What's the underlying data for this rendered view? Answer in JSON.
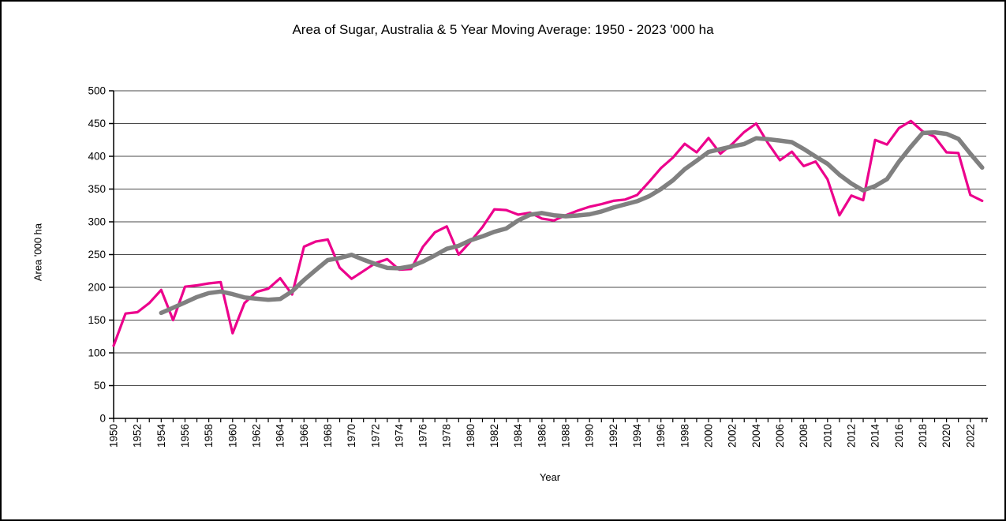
{
  "chart_data": {
    "type": "line",
    "title": "Area of Sugar, Australia & 5 Year Moving Average: 1950 - 2023 '000 ha",
    "xlabel": "Year",
    "ylabel": "Area '000 ha",
    "ylim": [
      0,
      500
    ],
    "ytick_step": 50,
    "xtick_label_every": 2,
    "grid": true,
    "legend": "none",
    "x": [
      1950,
      1951,
      1952,
      1953,
      1954,
      1955,
      1956,
      1957,
      1958,
      1959,
      1960,
      1961,
      1962,
      1963,
      1964,
      1965,
      1966,
      1967,
      1968,
      1969,
      1970,
      1971,
      1972,
      1973,
      1974,
      1975,
      1976,
      1977,
      1978,
      1979,
      1980,
      1981,
      1982,
      1983,
      1984,
      1985,
      1986,
      1987,
      1988,
      1989,
      1990,
      1991,
      1992,
      1993,
      1994,
      1995,
      1996,
      1997,
      1998,
      1999,
      2000,
      2001,
      2002,
      2003,
      2004,
      2005,
      2006,
      2007,
      2008,
      2009,
      2010,
      2011,
      2012,
      2013,
      2014,
      2015,
      2016,
      2017,
      2018,
      2019,
      2020,
      2021,
      2022,
      2023
    ],
    "series": [
      {
        "name": "Area",
        "color": "#EC008C",
        "stroke_width": 3.2,
        "values": [
          111,
          160,
          162,
          176,
          196,
          150,
          201,
          203,
          206,
          208,
          130,
          176,
          193,
          198,
          214,
          189,
          262,
          270,
          273,
          230,
          213,
          225,
          237,
          243,
          227,
          228,
          262,
          284,
          293,
          250,
          270,
          292,
          319,
          318,
          311,
          314,
          305,
          302,
          310,
          317,
          323,
          327,
          332,
          334,
          341,
          361,
          382,
          398,
          419,
          406,
          428,
          404,
          419,
          437,
          450,
          420,
          394,
          407,
          385,
          392,
          365,
          310,
          340,
          333,
          425,
          418,
          443,
          454,
          438,
          430,
          406,
          405,
          341,
          332
        ]
      },
      {
        "name": "5 Year Moving Average",
        "color": "#808080",
        "stroke_width": 5.5,
        "values": [
          null,
          null,
          null,
          null,
          161,
          168.8,
          177,
          185.2,
          191.2,
          193.6,
          189.6,
          184.6,
          182.6,
          181,
          182.2,
          194,
          211.2,
          226.6,
          241.6,
          244.8,
          249.6,
          242.2,
          235.6,
          229.6,
          229,
          232,
          239.4,
          248.8,
          258.8,
          263.4,
          271.8,
          277.8,
          284.8,
          289.8,
          302,
          310.8,
          313.4,
          310,
          308.4,
          309.6,
          311.4,
          315.8,
          321.8,
          326.6,
          331.4,
          339,
          350,
          363.2,
          380.2,
          393.2,
          406.6,
          411,
          415.2,
          418.8,
          427.6,
          426,
          424,
          421.6,
          411.2,
          399.6,
          388.6,
          371.8,
          358.4,
          348,
          354.6,
          365.2,
          391.8,
          414.6,
          435.6,
          436.6,
          434.2,
          426.6,
          404,
          382.8
        ]
      }
    ]
  },
  "colors": {
    "axis": "#000000",
    "gridline": "#4a4a4a",
    "tick_label": "#000000"
  }
}
